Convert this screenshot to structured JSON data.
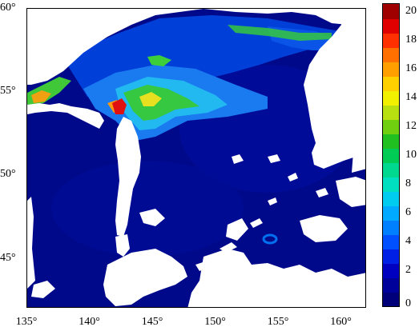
{
  "map": {
    "lon_range": [
      135,
      162
    ],
    "lat_range": [
      42,
      60
    ],
    "x_ticks": [
      {
        "value": 135,
        "label": "135°"
      },
      {
        "value": 140,
        "label": "140°"
      },
      {
        "value": 145,
        "label": "145°"
      },
      {
        "value": 150,
        "label": "150°"
      },
      {
        "value": 155,
        "label": "155°"
      },
      {
        "value": 160,
        "label": "160°"
      }
    ],
    "y_ticks": [
      {
        "value": 60,
        "label": "60°"
      },
      {
        "value": 55,
        "label": "55°"
      },
      {
        "value": 50,
        "label": "50°"
      },
      {
        "value": 45,
        "label": "45°"
      }
    ],
    "colors": {
      "sea_base": "#000a8c",
      "sea_mid": "#0010b0",
      "sea_light": "#0050e0",
      "shelf_cyan": "#25b5ff",
      "shelf_green": "#3fc93a",
      "bloom_yellow": "#f5e61a",
      "bloom_orange": "#ff9a10",
      "bloom_red": "#e01010",
      "land": "#ffffff"
    }
  },
  "colorbar": {
    "min": 0,
    "max": 21,
    "labels": [
      {
        "value": 20,
        "label": "20"
      },
      {
        "value": 18,
        "label": "18"
      },
      {
        "value": 16,
        "label": "16"
      },
      {
        "value": 14,
        "label": "14"
      },
      {
        "value": 12,
        "label": "12"
      },
      {
        "value": 10,
        "label": "10"
      },
      {
        "value": 8,
        "label": "8"
      },
      {
        "value": 6,
        "label": "6"
      },
      {
        "value": 4,
        "label": "4"
      },
      {
        "value": 2,
        "label": "2"
      },
      {
        "value": 0,
        "label": "0"
      }
    ],
    "segments": [
      "#00007a",
      "#00009a",
      "#0000c0",
      "#0020e6",
      "#0050ff",
      "#0080ff",
      "#00aaff",
      "#00ccf0",
      "#00e0c0",
      "#00d890",
      "#00cc55",
      "#20c020",
      "#70d010",
      "#b8e010",
      "#f0f000",
      "#ffd000",
      "#ffa000",
      "#ff7000",
      "#ff3000",
      "#e00000",
      "#a00000"
    ]
  }
}
